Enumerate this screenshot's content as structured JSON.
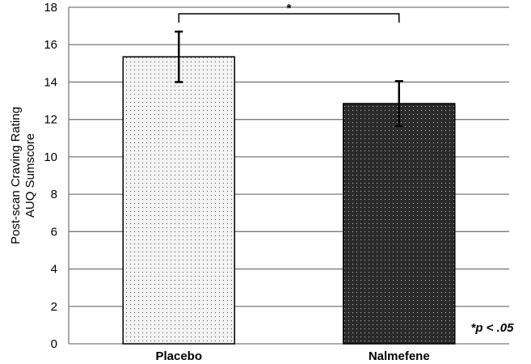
{
  "chart_data": {
    "type": "bar",
    "categories": [
      "Placebo",
      "Nalmefene"
    ],
    "values": [
      15.35,
      12.85
    ],
    "error": [
      1.35,
      1.2
    ],
    "ylabel": [
      "Post-scan Craving Rating",
      "AUQ Sumscore"
    ],
    "ylim": [
      0,
      18
    ],
    "yticks": [
      0,
      2,
      4,
      6,
      8,
      10,
      12,
      14,
      16,
      18
    ],
    "grid": true,
    "significance": {
      "label": "*",
      "between": [
        0,
        1
      ]
    },
    "annotation": "*p < .05",
    "bar_fills": [
      "#f3f3f3",
      "#2a2a2a"
    ],
    "dot_colors": [
      "#555555",
      "#bbbbbb"
    ]
  }
}
